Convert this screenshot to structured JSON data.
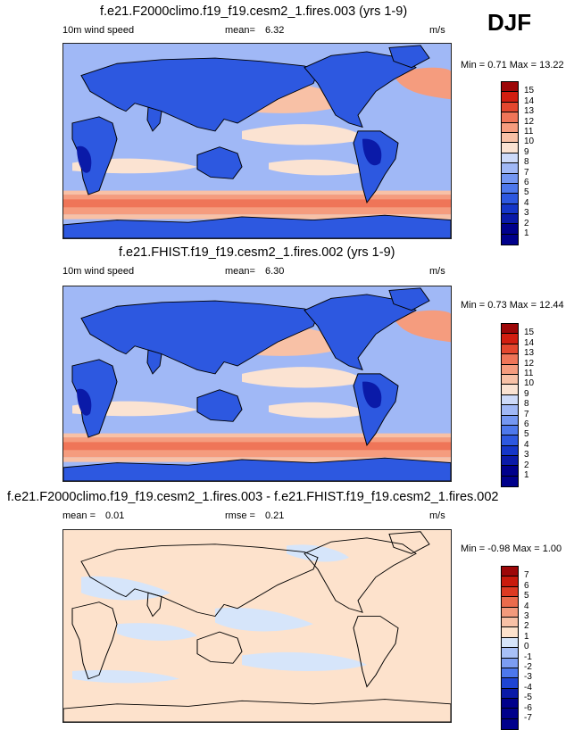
{
  "season": "DJF",
  "colors": {
    "fullfield": [
      "#00008b",
      "#0a1aa8",
      "#1536c8",
      "#2d58e0",
      "#4d78ec",
      "#7497f2",
      "#a0b8f6",
      "#cddaf9",
      "#fbe3d2",
      "#f8c1a6",
      "#f59c7e",
      "#ef7558",
      "#e4472e",
      "#d21e10",
      "#9d0708"
    ],
    "diff": [
      "#00008b",
      "#0a1aa8",
      "#1f45d4",
      "#4d78ec",
      "#7c9df2",
      "#a8c0f7",
      "#d6e5fa",
      "#fde2cc",
      "#f8c1a6",
      "#f39a7c",
      "#ea6b4c",
      "#dd3a22",
      "#c91a0c",
      "#9d0708"
    ]
  },
  "chart_data": [
    {
      "type": "heatmap",
      "title": "f.e21.F2000climo.f19_f19.cesm2_1.fires.003 (yrs 1-9)",
      "variable": "10m wind speed",
      "mean_label": "mean=",
      "mean": "6.32",
      "units": "m/s",
      "min_label": "Min =",
      "min": "0.71",
      "max_label": "Max =",
      "max": "13.22",
      "colorbar_levels": [
        "15",
        "14",
        "13",
        "12",
        "11",
        "10",
        "9",
        "8",
        "7",
        "6",
        "5",
        "4",
        "3",
        "2",
        "1"
      ]
    },
    {
      "type": "heatmap",
      "title": "f.e21.FHIST.f19_f19.cesm2_1.fires.002 (yrs 1-9)",
      "variable": "10m wind speed",
      "mean_label": "mean=",
      "mean": "6.30",
      "units": "m/s",
      "min_label": "Min =",
      "min": "0.73",
      "max_label": "Max =",
      "max": "12.44",
      "colorbar_levels": [
        "15",
        "14",
        "13",
        "12",
        "11",
        "10",
        "9",
        "8",
        "7",
        "6",
        "5",
        "4",
        "3",
        "2",
        "1"
      ]
    },
    {
      "type": "heatmap",
      "title": "f.e21.F2000climo.f19_f19.cesm2_1.fires.003 - f.e21.FHIST.f19_f19.cesm2_1.fires.002",
      "mean_label": "mean =",
      "mean": "0.01",
      "rmse_label": "rmse =",
      "rmse": "0.21",
      "units": "m/s",
      "min_label": "Min =",
      "min": "-0.98",
      "max_label": "Max =",
      "max": "1.00",
      "colorbar_levels": [
        "7",
        "6",
        "5",
        "4",
        "3",
        "2",
        "1",
        "0",
        "-1",
        "-2",
        "-3",
        "-4",
        "-5",
        "-6",
        "-7"
      ]
    }
  ]
}
